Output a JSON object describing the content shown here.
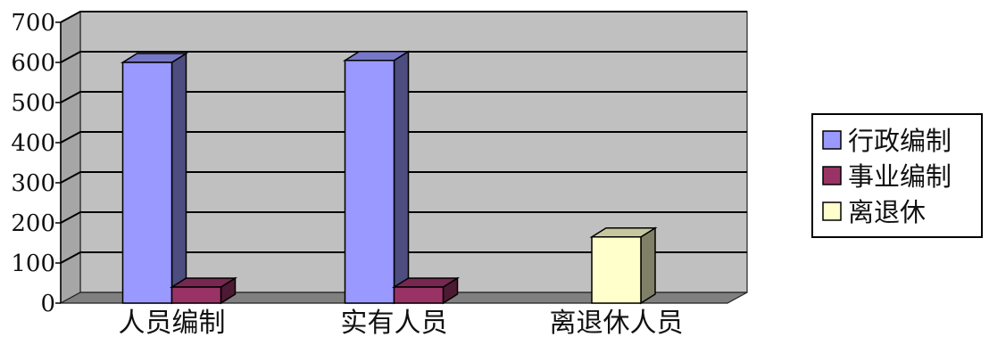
{
  "chart_data": {
    "type": "bar",
    "categories": [
      "人员编制",
      "实有人员",
      "离退休人员"
    ],
    "series": [
      {
        "name": "行政编制",
        "values": [
          600,
          605,
          null
        ],
        "color": "#9999ff"
      },
      {
        "name": "事业编制",
        "values": [
          40,
          40,
          null
        ],
        "color": "#993366"
      },
      {
        "name": "离退休",
        "values": [
          null,
          null,
          165
        ],
        "color": "#ffffcc"
      }
    ],
    "ylim": [
      0,
      700
    ],
    "yticks": [
      0,
      100,
      200,
      300,
      400,
      500,
      600,
      700
    ],
    "grid": true,
    "legend": "right",
    "plot_background": "#c0c0c0",
    "floor_color": "#808080"
  }
}
